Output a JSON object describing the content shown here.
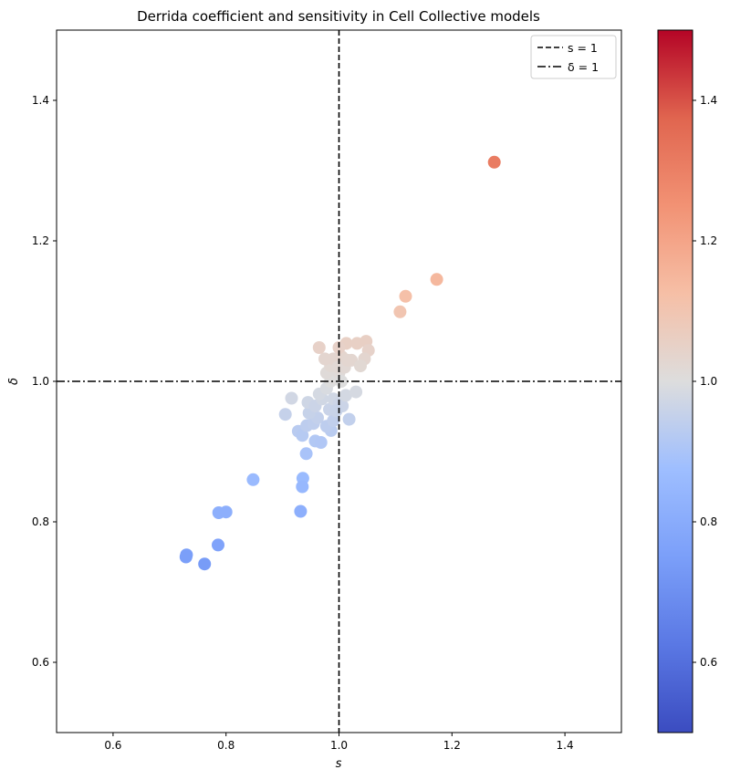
{
  "chart_data": {
    "type": "scatter",
    "title": "Derrida coefficient and sensitivity in Cell Collective models",
    "xlabel": "s",
    "ylabel": "δ",
    "xlim": [
      0.5,
      1.5
    ],
    "ylim": [
      0.5,
      1.5
    ],
    "xticks": [
      "0.6",
      "0.8",
      "1.0",
      "1.2",
      "1.4"
    ],
    "yticks": [
      "0.6",
      "0.8",
      "1.0",
      "1.2",
      "1.4"
    ],
    "grid": false,
    "colormap": "coolwarm",
    "color_by": "y",
    "colorbar": {
      "range": [
        0.5,
        1.5
      ],
      "ticks": [
        "0.6",
        "0.8",
        "1.0",
        "1.2",
        "1.4"
      ]
    },
    "reference_lines": [
      {
        "orientation": "vertical",
        "value": 1.0,
        "style": "dashed"
      },
      {
        "orientation": "horizontal",
        "value": 1.0,
        "style": "dashdot"
      }
    ],
    "legend": {
      "position": "top-right",
      "entries": [
        {
          "label": "s = 1",
          "style": "dashed"
        },
        {
          "label": "δ = 1",
          "style": "dashdot"
        }
      ]
    },
    "points": [
      [
        1.275,
        1.312
      ],
      [
        1.173,
        1.145
      ],
      [
        1.118,
        1.121
      ],
      [
        1.108,
        1.099
      ],
      [
        0.848,
        0.86
      ],
      [
        0.936,
        0.862
      ],
      [
        0.935,
        0.85
      ],
      [
        0.932,
        0.815
      ],
      [
        0.787,
        0.813
      ],
      [
        0.8,
        0.814
      ],
      [
        0.786,
        0.767
      ],
      [
        0.73,
        0.753
      ],
      [
        0.729,
        0.75
      ],
      [
        0.762,
        0.74
      ],
      [
        0.942,
        0.897
      ],
      [
        0.958,
        0.915
      ],
      [
        0.968,
        0.913
      ],
      [
        0.986,
        0.93
      ],
      [
        0.928,
        0.929
      ],
      [
        0.935,
        0.923
      ],
      [
        0.905,
        0.953
      ],
      [
        0.916,
        0.976
      ],
      [
        0.943,
        0.937
      ],
      [
        0.955,
        0.94
      ],
      [
        0.962,
        0.948
      ],
      [
        0.978,
        0.936
      ],
      [
        0.99,
        0.944
      ],
      [
        1.018,
        0.946
      ],
      [
        0.947,
        0.955
      ],
      [
        0.945,
        0.97
      ],
      [
        0.958,
        0.965
      ],
      [
        0.97,
        0.975
      ],
      [
        0.983,
        0.96
      ],
      [
        0.99,
        0.975
      ],
      [
        1.0,
        0.968
      ],
      [
        1.006,
        0.965
      ],
      [
        1.012,
        0.98
      ],
      [
        1.03,
        0.985
      ],
      [
        0.965,
        0.982
      ],
      [
        0.978,
        0.99
      ],
      [
        0.985,
        1.0
      ],
      [
        0.992,
        1.005
      ],
      [
        1.0,
        1.012
      ],
      [
        1.01,
        1.02
      ],
      [
        1.022,
        1.03
      ],
      [
        0.978,
        1.012
      ],
      [
        0.985,
        1.022
      ],
      [
        0.99,
        1.032
      ],
      [
        0.975,
        1.032
      ],
      [
        0.965,
        1.048
      ],
      [
        1.013,
        1.054
      ],
      [
        1.032,
        1.054
      ],
      [
        1.048,
        1.057
      ],
      [
        1.052,
        1.044
      ],
      [
        1.045,
        1.032
      ],
      [
        1.038,
        1.022
      ],
      [
        1.005,
        1.035
      ],
      [
        1.0,
        1.048
      ],
      [
        0.998,
        1.02
      ],
      [
        1.004,
        1.0
      ],
      [
        1.015,
        1.03
      ],
      [
        0.995,
        0.958
      ]
    ]
  }
}
